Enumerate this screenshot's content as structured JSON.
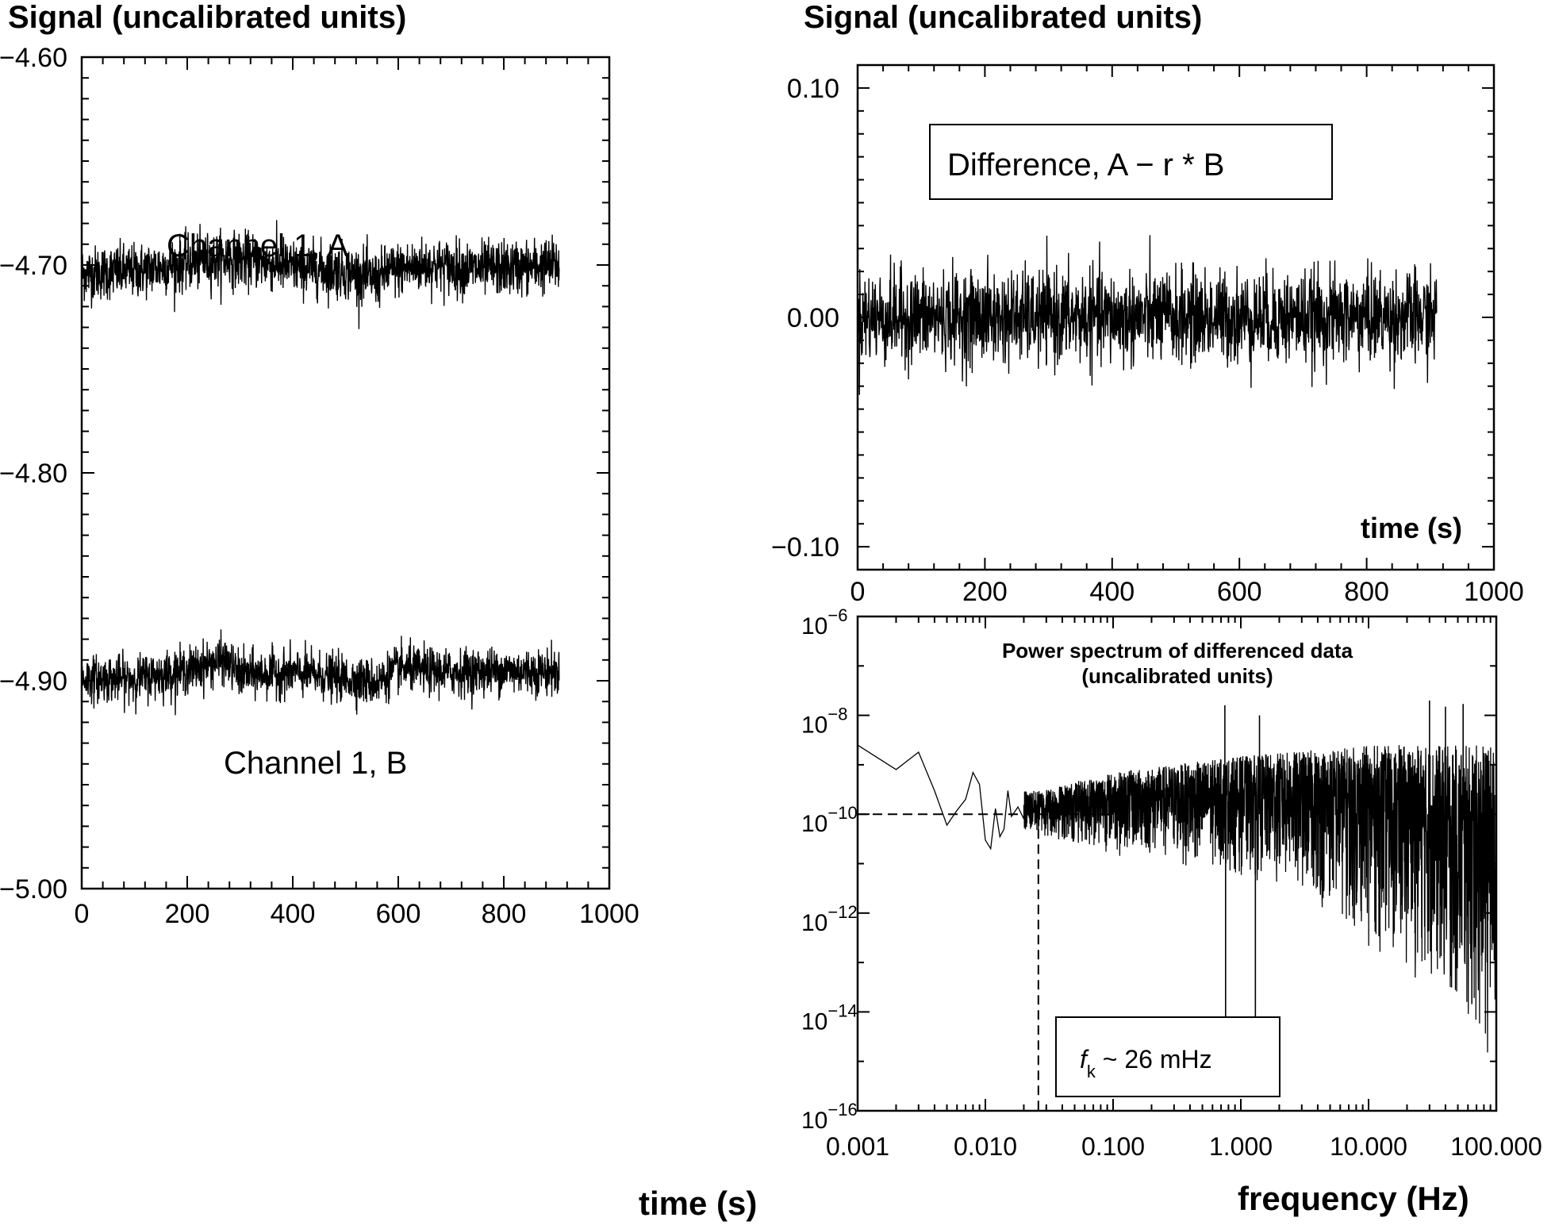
{
  "chart_data": [
    {
      "id": "left",
      "type": "line",
      "ylabel": "Signal (uncalibrated units)",
      "xlabel": "time (s)",
      "xlim": [
        0,
        1000
      ],
      "ylim": [
        -5.0,
        -4.6
      ],
      "x_ticks": [
        "0",
        "200",
        "400",
        "600",
        "800",
        "1000"
      ],
      "y_ticks": [
        "−4.60",
        "−4.70",
        "−4.80",
        "−4.90",
        "−5.00"
      ],
      "series": [
        {
          "name": "Channel 1, A",
          "x_range": [
            0,
            905
          ],
          "mean_profile_x": [
            0,
            100,
            200,
            270,
            330,
            400,
            500,
            560,
            580,
            650,
            750,
            850,
            905
          ],
          "mean_profile_y": [
            -4.704,
            -4.703,
            -4.699,
            -4.697,
            -4.698,
            -4.701,
            -4.703,
            -4.707,
            -4.703,
            -4.7,
            -4.702,
            -4.701,
            -4.7
          ],
          "noise_amplitude": 0.013
        },
        {
          "name": "Channel 1, B",
          "x_range": [
            0,
            905
          ],
          "mean_profile_x": [
            0,
            100,
            200,
            270,
            300,
            400,
            500,
            560,
            600,
            700,
            800,
            905
          ],
          "mean_profile_y": [
            -4.899,
            -4.899,
            -4.895,
            -4.89,
            -4.897,
            -4.896,
            -4.899,
            -4.901,
            -4.894,
            -4.896,
            -4.895,
            -4.896
          ],
          "noise_amplitude": 0.011
        }
      ]
    },
    {
      "id": "top-right",
      "type": "line",
      "ylabel": "Signal (uncalibrated units)",
      "xlabel": "time (s)",
      "xlim": [
        0,
        1000
      ],
      "ylim": [
        -0.11,
        0.11
      ],
      "x_ticks": [
        "0",
        "200",
        "400",
        "600",
        "800",
        "1000"
      ],
      "y_ticks": [
        "0.10",
        "0.00",
        "−0.10"
      ],
      "annotation": "Difference, A − r * B",
      "series": [
        {
          "name": "Difference, A − r * B",
          "x_range": [
            0,
            910
          ],
          "mean": 0.0,
          "noise_amplitude": 0.02
        }
      ]
    },
    {
      "id": "bottom-right",
      "type": "line",
      "title": "Power spectrum of differenced data",
      "subtitle": "(uncalibrated units)",
      "xlabel": "frequency (Hz)",
      "xscale": "log",
      "yscale": "log",
      "xlim": [
        0.001,
        100
      ],
      "ylim": [
        1e-16,
        1e-06
      ],
      "x_ticks": [
        "0.001",
        "0.010",
        "0.100",
        "1.000",
        "10.000",
        "100.000"
      ],
      "y_ticks": [
        {
          "base": "10",
          "exp": "−6"
        },
        {
          "base": "10",
          "exp": "−8"
        },
        {
          "base": "10",
          "exp": "−10"
        },
        {
          "base": "10",
          "exp": "−12"
        },
        {
          "base": "10",
          "exp": "−14"
        },
        {
          "base": "10",
          "exp": "−16"
        }
      ],
      "knee_annotation": {
        "f": "f",
        "sub": "k",
        "text": " ~ 26 mHz",
        "knee_frequency_hz": 0.026
      },
      "white_noise_level": 1e-10,
      "low_freq_points": [
        [
          0.001,
          2.5e-09
        ],
        [
          0.002,
          8e-10
        ],
        [
          0.003,
          1.8e-09
        ],
        [
          0.004,
          3e-10
        ],
        [
          0.005,
          6e-11
        ],
        [
          0.006,
          1.2e-10
        ],
        [
          0.007,
          2e-10
        ],
        [
          0.008,
          7e-10
        ],
        [
          0.009,
          4e-10
        ],
        [
          0.01,
          3e-11
        ],
        [
          0.011,
          2e-11
        ],
        [
          0.012,
          1.3e-10
        ],
        [
          0.013,
          3.5e-11
        ],
        [
          0.014,
          5e-11
        ],
        [
          0.015,
          3e-10
        ],
        [
          0.016,
          9e-11
        ],
        [
          0.018,
          1.4e-10
        ],
        [
          0.02,
          8e-11
        ]
      ],
      "spikes": [
        [
          0.75,
          1.6e-08
        ],
        [
          0.76,
          4e-15
        ],
        [
          1.3,
          4e-15
        ],
        [
          1.4,
          1e-08
        ],
        [
          30,
          2e-08
        ],
        [
          40,
          1.5e-08
        ],
        [
          55,
          1.7e-08
        ]
      ],
      "upper_envelope": [
        [
          0.026,
          3e-10
        ],
        [
          0.1,
          7e-10
        ],
        [
          1,
          1.5e-09
        ],
        [
          10,
          2.5e-09
        ],
        [
          100,
          2.5e-09
        ]
      ],
      "lower_envelope": [
        [
          0.026,
          3e-11
        ],
        [
          0.1,
          1.5e-11
        ],
        [
          1,
          5e-12
        ],
        [
          3,
          2e-12
        ],
        [
          10,
          2e-13
        ],
        [
          30,
          3e-14
        ],
        [
          100,
          4e-16
        ]
      ]
    }
  ]
}
